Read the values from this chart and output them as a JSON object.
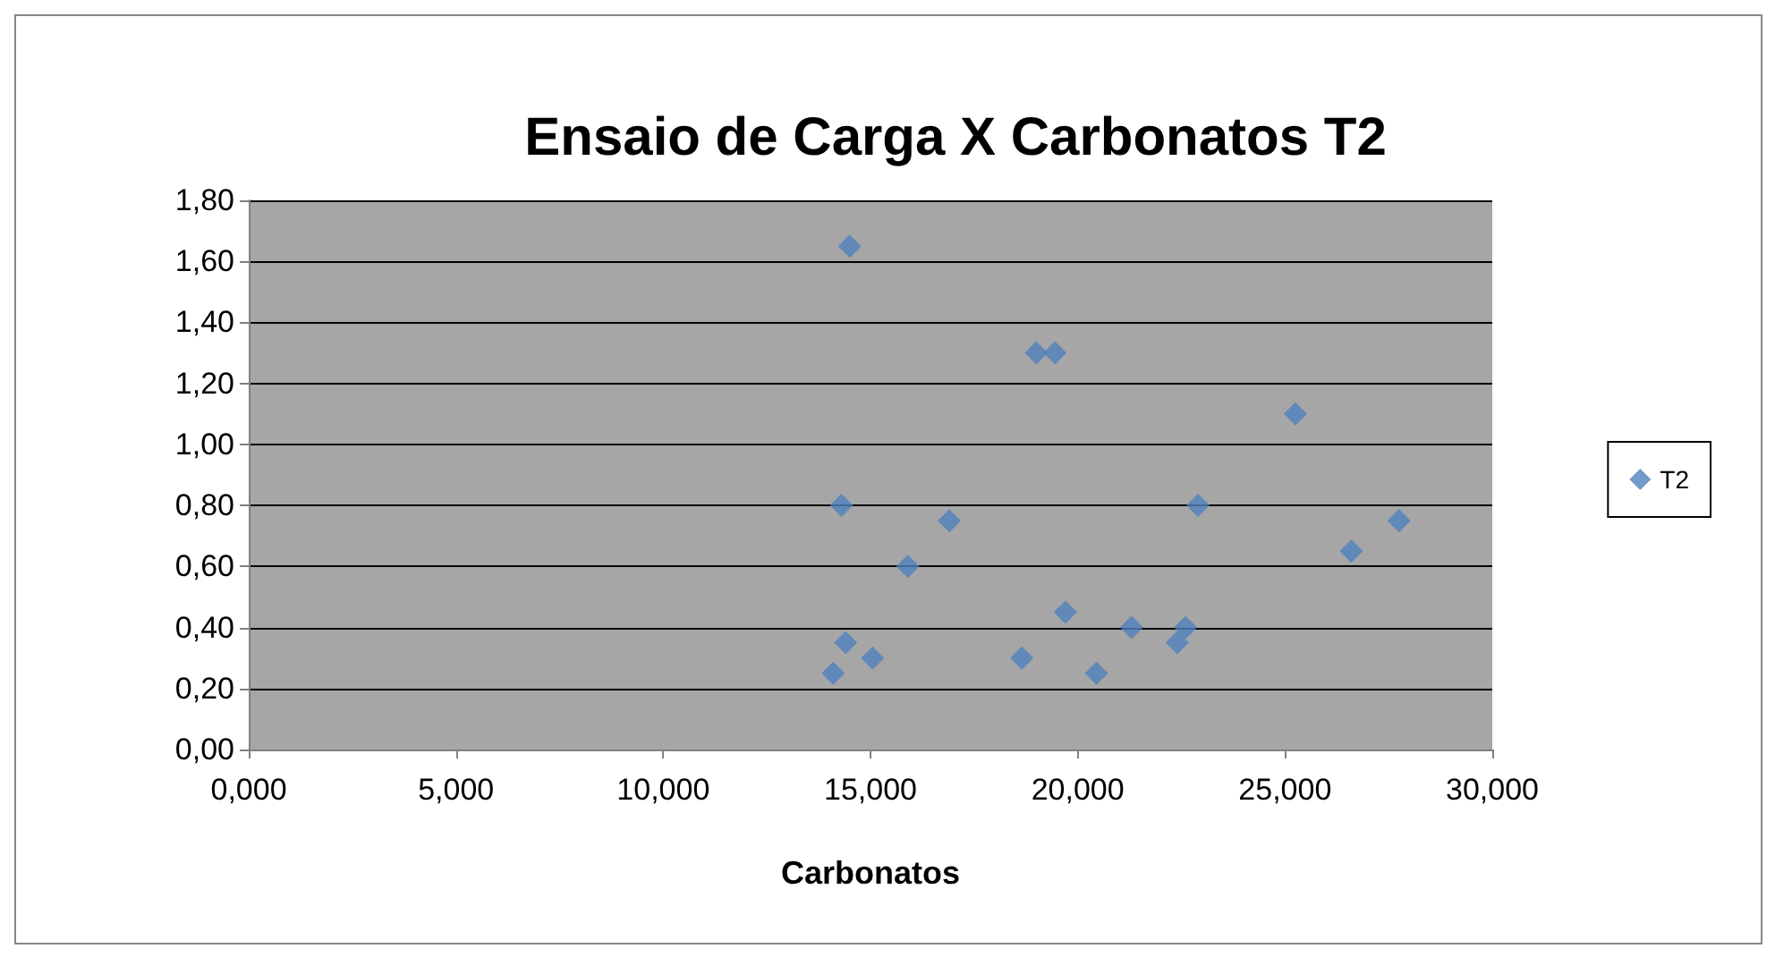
{
  "chart_data": {
    "type": "scatter",
    "title": "Ensaio de Carga X Carbonatos T2",
    "xlabel": "Carbonatos",
    "xlim": [
      0,
      30
    ],
    "xticks": [
      {
        "value": 0,
        "label": "0,000"
      },
      {
        "value": 5,
        "label": "5,000"
      },
      {
        "value": 10,
        "label": "10,000"
      },
      {
        "value": 15,
        "label": "15,000"
      },
      {
        "value": 20,
        "label": "20,000"
      },
      {
        "value": 25,
        "label": "25,000"
      },
      {
        "value": 30,
        "label": "30,000"
      }
    ],
    "ylim": [
      0,
      1.8
    ],
    "yticks": [
      {
        "value": 0,
        "label": "0,00"
      },
      {
        "value": 0.2,
        "label": "0,20"
      },
      {
        "value": 0.4,
        "label": "0,40"
      },
      {
        "value": 0.6,
        "label": "0,60"
      },
      {
        "value": 0.8,
        "label": "0,80"
      },
      {
        "value": 1,
        "label": "1,00"
      },
      {
        "value": 1.2,
        "label": "1,20"
      },
      {
        "value": 1.4,
        "label": "1,40"
      },
      {
        "value": 1.6,
        "label": "1,60"
      },
      {
        "value": 1.8,
        "label": "1,80"
      }
    ],
    "grid": "y",
    "legend": "right",
    "marker": "diamond",
    "series": [
      {
        "name": "T2",
        "color": "#4f81bd",
        "x": [
          14.5,
          19.0,
          19.45,
          25.25,
          14.3,
          16.9,
          22.9,
          27.75,
          15.9,
          26.6,
          19.7,
          14.4,
          21.3,
          22.6,
          22.4,
          18.65,
          15.05,
          14.1,
          20.45
        ],
        "values": [
          1.65,
          1.3,
          1.3,
          1.1,
          0.8,
          0.75,
          0.8,
          0.75,
          0.6,
          0.65,
          0.45,
          0.35,
          0.4,
          0.4,
          0.35,
          0.3,
          0.3,
          0.25,
          0.25
        ]
      }
    ]
  }
}
